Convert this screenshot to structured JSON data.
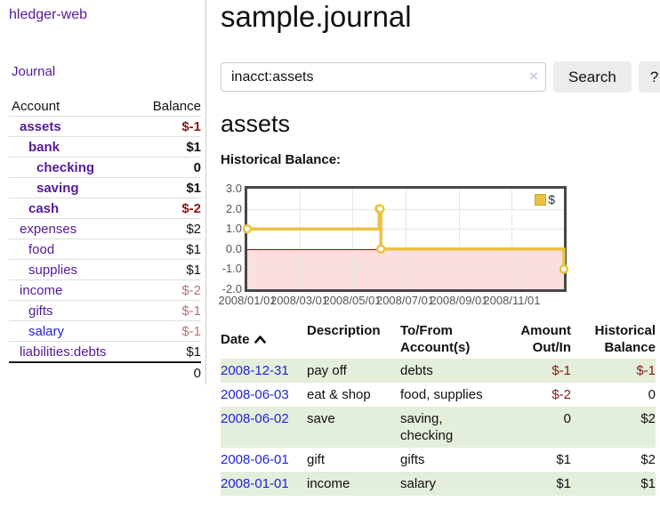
{
  "app": {
    "title": "hledger-web",
    "nav_journal": "Journal"
  },
  "colors": {
    "link_purple": "#551a97",
    "link_blue": "#2222dd",
    "negative_strong": "#8b1717",
    "negative_muted": "#bd7070",
    "row_green": "#e3eedb",
    "series_yellow": "#edc240",
    "zero_line_red": "#a40000",
    "negative_area_pink": "#fbdede"
  },
  "sidebar": {
    "col_account": "Account",
    "col_balance": "Balance",
    "accounts": [
      {
        "label": "assets",
        "level": 1,
        "bold": true,
        "label_color": "purple",
        "balance": "$-1",
        "balance_color": "strongneg"
      },
      {
        "label": "bank",
        "level": 2,
        "bold": true,
        "label_color": "purple",
        "balance": "$1",
        "balance_color": "black"
      },
      {
        "label": "checking",
        "level": 3,
        "bold": true,
        "label_color": "purple",
        "balance": "0",
        "balance_color": "black"
      },
      {
        "label": "saving",
        "level": 3,
        "bold": true,
        "label_color": "purple",
        "balance": "$1",
        "balance_color": "black"
      },
      {
        "label": "cash",
        "level": 2,
        "bold": true,
        "label_color": "purple",
        "balance": "$-2",
        "balance_color": "strongneg"
      },
      {
        "label": "expenses",
        "level": 1,
        "bold": false,
        "label_color": "purple",
        "balance": "$2",
        "balance_color": "black"
      },
      {
        "label": "food",
        "level": 2,
        "bold": false,
        "label_color": "purple",
        "balance": "$1",
        "balance_color": "black"
      },
      {
        "label": "supplies",
        "level": 2,
        "bold": false,
        "label_color": "purple",
        "balance": "$1",
        "balance_color": "black"
      },
      {
        "label": "income",
        "level": 1,
        "bold": false,
        "label_color": "purple",
        "balance": "$-2",
        "balance_color": "mutedneg"
      },
      {
        "label": "gifts",
        "level": 2,
        "bold": false,
        "label_color": "purple",
        "balance": "$-1",
        "balance_color": "mutedneg"
      },
      {
        "label": "salary",
        "level": 2,
        "bold": false,
        "label_color": "blue",
        "balance": "$-1",
        "balance_color": "mutedneg"
      },
      {
        "label": "liabilities:debts",
        "level": 1,
        "bold": false,
        "label_color": "purple",
        "balance": "$1",
        "balance_color": "black"
      }
    ],
    "total": "0"
  },
  "main": {
    "title": "sample.journal",
    "search": {
      "value": "inacct:assets",
      "clear_icon": "×",
      "button_label": "Search",
      "help_label": "?"
    },
    "account_heading": "assets",
    "chart_label": "Historical Balance:"
  },
  "chart_data": {
    "type": "line",
    "title": "Historical Balance:",
    "legend_position": "top-right",
    "grid": true,
    "ylim": [
      -2,
      3
    ],
    "y_ticks": [
      "3.0",
      "2.0",
      "1.0",
      "0.0",
      "-1.0",
      "-2.0"
    ],
    "x_ticks": [
      "2008/01/01",
      "2008/03/01",
      "2008/05/01",
      "2008/07/01",
      "2008/09/01",
      "2008/11/01"
    ],
    "x_range": [
      "2008-01-01",
      "2008-12-31"
    ],
    "series": [
      {
        "name": "$",
        "style": "step",
        "points": [
          [
            "2008-01-01",
            1
          ],
          [
            "2008-06-01",
            2
          ],
          [
            "2008-06-02",
            2
          ],
          [
            "2008-06-03",
            0
          ],
          [
            "2008-12-31",
            -1
          ]
        ]
      }
    ]
  },
  "register": {
    "headers": {
      "date": "Date",
      "sort_icon": "chevron-up",
      "description": "Description",
      "accounts": "To/From\nAccount(s)",
      "amount": "Amount\nOut/In",
      "balance": "Historical\nBalance"
    },
    "rows": [
      {
        "date": "2008-12-31",
        "description": "pay off",
        "accounts": "debts",
        "amount": "$-1",
        "amount_neg": true,
        "balance": "$-1",
        "balance_neg": true,
        "shaded": true
      },
      {
        "date": "2008-06-03",
        "description": "eat & shop",
        "accounts": "food, supplies",
        "amount": "$-2",
        "amount_neg": true,
        "balance": "0",
        "balance_neg": false,
        "shaded": false
      },
      {
        "date": "2008-06-02",
        "description": "save",
        "accounts": "saving, checking",
        "amount": "0",
        "amount_neg": false,
        "balance": "$2",
        "balance_neg": false,
        "shaded": true
      },
      {
        "date": "2008-06-01",
        "description": "gift",
        "accounts": "gifts",
        "amount": "$1",
        "amount_neg": false,
        "balance": "$2",
        "balance_neg": false,
        "shaded": false
      },
      {
        "date": "2008-01-01",
        "description": "income",
        "accounts": "salary",
        "amount": "$1",
        "amount_neg": false,
        "balance": "$1",
        "balance_neg": false,
        "shaded": true
      }
    ]
  }
}
